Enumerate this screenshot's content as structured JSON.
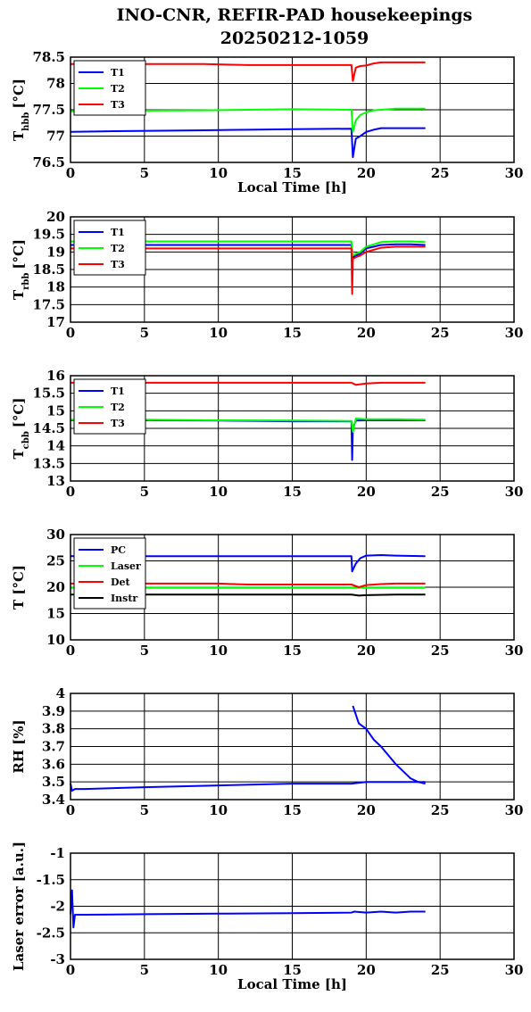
{
  "figure": {
    "title_line1": "INO-CNR, REFIR-PAD housekeepings",
    "title_line2": "20250212-1059"
  },
  "colors": {
    "T1": "#0000ff",
    "T2": "#00ff00",
    "T3": "#ff0000",
    "PC": "#0000ff",
    "Laser": "#00ff00",
    "Det": "#ff0000",
    "Instr": "#000000"
  },
  "chart_data": [
    {
      "type": "line",
      "ylabel_main": "T",
      "ylabel_sub": "hbb",
      "ylabel_unit": "[°C]",
      "xlabel": "Local Time [h]",
      "xlim": [
        0,
        30
      ],
      "ylim": [
        76.5,
        78.5
      ],
      "xticks": [
        "0",
        "5",
        "10",
        "15",
        "20",
        "25",
        "30"
      ],
      "yticks": [
        "76.5",
        "77",
        "77.5",
        "78",
        "78.5"
      ],
      "grid": true,
      "legend_position": "top-left",
      "series": [
        {
          "name": "T1",
          "x": [
            0,
            2,
            9,
            12,
            15,
            19,
            19.1,
            19.3,
            19.6,
            20,
            20.5,
            21,
            22,
            23,
            24
          ],
          "y": [
            77.08,
            77.09,
            77.11,
            77.12,
            77.13,
            77.14,
            76.6,
            76.95,
            77.0,
            77.08,
            77.12,
            77.15,
            77.15,
            77.15,
            77.15
          ]
        },
        {
          "name": "T2",
          "x": [
            0,
            2,
            9,
            12,
            15,
            19,
            19.1,
            19.3,
            19.6,
            20,
            20.5,
            21,
            22,
            23,
            24
          ],
          "y": [
            77.47,
            77.48,
            77.49,
            77.5,
            77.51,
            77.5,
            77.08,
            77.3,
            77.4,
            77.45,
            77.49,
            77.5,
            77.52,
            77.52,
            77.52
          ]
        },
        {
          "name": "T3",
          "x": [
            0,
            2,
            9,
            12,
            15,
            19,
            19.1,
            19.3,
            19.6,
            20,
            20.5,
            21,
            22,
            23,
            24
          ],
          "y": [
            78.37,
            78.37,
            78.37,
            78.35,
            78.35,
            78.35,
            78.05,
            78.3,
            78.33,
            78.34,
            78.38,
            78.4,
            78.4,
            78.4,
            78.4
          ]
        }
      ]
    },
    {
      "type": "line",
      "ylabel_main": "T",
      "ylabel_sub": "rbb",
      "ylabel_unit": "[°C]",
      "xlabel": "",
      "xlim": [
        0,
        30
      ],
      "ylim": [
        17,
        20
      ],
      "xticks": [
        "0",
        "5",
        "10",
        "15",
        "20",
        "25",
        "30"
      ],
      "yticks": [
        "17",
        "17.5",
        "18",
        "18.5",
        "19",
        "19.5",
        "20"
      ],
      "grid": true,
      "legend_position": "top-left",
      "series": [
        {
          "name": "T1",
          "x": [
            0,
            5,
            10,
            15,
            19,
            19.1,
            19.3,
            19.6,
            20,
            21,
            22,
            23,
            24
          ],
          "y": [
            19.2,
            19.2,
            19.2,
            19.2,
            19.2,
            18.85,
            18.9,
            18.95,
            19.1,
            19.2,
            19.22,
            19.22,
            19.2
          ]
        },
        {
          "name": "T2",
          "x": [
            0,
            5,
            10,
            15,
            19,
            19.1,
            19.3,
            19.6,
            20,
            21,
            22,
            23,
            24
          ],
          "y": [
            19.3,
            19.3,
            19.3,
            19.3,
            19.3,
            18.9,
            18.95,
            19.0,
            19.15,
            19.28,
            19.3,
            19.3,
            19.28
          ]
        },
        {
          "name": "T3",
          "x": [
            0,
            5,
            10,
            15,
            19,
            19.05,
            19.1,
            19.3,
            19.6,
            20,
            21,
            22,
            23,
            24
          ],
          "y": [
            19.1,
            19.1,
            19.1,
            19.1,
            19.1,
            17.8,
            18.8,
            18.85,
            18.9,
            19.0,
            19.12,
            19.15,
            19.15,
            19.15
          ]
        }
      ]
    },
    {
      "type": "line",
      "ylabel_main": "T",
      "ylabel_sub": "cbb",
      "ylabel_unit": "[°C]",
      "xlabel": "",
      "xlim": [
        0,
        30
      ],
      "ylim": [
        13,
        16
      ],
      "xticks": [
        "0",
        "5",
        "10",
        "15",
        "20",
        "25",
        "30"
      ],
      "yticks": [
        "13",
        "13.5",
        "14",
        "14.5",
        "15",
        "15.5",
        "16"
      ],
      "grid": true,
      "legend_position": "top-left",
      "series": [
        {
          "name": "T1",
          "x": [
            0,
            5,
            10,
            15,
            19,
            19.05,
            19.1,
            19.3,
            20,
            22,
            24
          ],
          "y": [
            14.73,
            14.73,
            14.72,
            14.7,
            14.7,
            13.6,
            14.5,
            14.72,
            14.73,
            14.73,
            14.73
          ]
        },
        {
          "name": "T2",
          "x": [
            0,
            5,
            10,
            15,
            19,
            19.1,
            19.3,
            20,
            22,
            24
          ],
          "y": [
            14.75,
            14.75,
            14.73,
            14.72,
            14.71,
            14.4,
            14.78,
            14.76,
            14.76,
            14.75
          ]
        },
        {
          "name": "T3",
          "x": [
            0,
            5,
            10,
            15,
            19,
            19.3,
            20,
            21,
            22,
            24
          ],
          "y": [
            15.8,
            15.8,
            15.8,
            15.8,
            15.8,
            15.74,
            15.78,
            15.8,
            15.8,
            15.8
          ]
        }
      ]
    },
    {
      "type": "line",
      "ylabel_main": "T [°C]",
      "ylabel_sub": "",
      "ylabel_unit": "",
      "xlabel": "",
      "xlim": [
        0,
        30
      ],
      "ylim": [
        10,
        30
      ],
      "xticks": [
        "0",
        "5",
        "10",
        "15",
        "20",
        "25",
        "30"
      ],
      "yticks": [
        "10",
        "15",
        "20",
        "25",
        "30"
      ],
      "grid": true,
      "legend_position": "top-left",
      "series": [
        {
          "name": "PC",
          "x": [
            0,
            5,
            10,
            15,
            19,
            19.05,
            19.3,
            19.6,
            20,
            21,
            22,
            24
          ],
          "y": [
            25.9,
            25.9,
            25.9,
            25.9,
            25.9,
            23.0,
            24.5,
            25.5,
            26.0,
            26.1,
            26.0,
            25.9
          ]
        },
        {
          "name": "Laser",
          "x": [
            0,
            5,
            10,
            15,
            19,
            20,
            22,
            24
          ],
          "y": [
            19.9,
            19.9,
            19.9,
            19.9,
            19.9,
            19.9,
            19.9,
            19.9
          ]
        },
        {
          "name": "Det",
          "x": [
            0,
            5,
            10,
            12,
            15,
            19,
            19.5,
            20,
            21,
            22,
            24
          ],
          "y": [
            20.7,
            20.7,
            20.7,
            20.5,
            20.5,
            20.5,
            20.0,
            20.4,
            20.6,
            20.7,
            20.7
          ]
        },
        {
          "name": "Instr",
          "x": [
            0,
            5,
            10,
            15,
            19,
            19.5,
            20,
            22,
            24
          ],
          "y": [
            18.6,
            18.6,
            18.6,
            18.6,
            18.6,
            18.4,
            18.5,
            18.6,
            18.6
          ]
        }
      ]
    },
    {
      "type": "line",
      "ylabel_main": "RH [%]",
      "ylabel_sub": "",
      "ylabel_unit": "",
      "xlabel": "",
      "xlim": [
        0,
        30
      ],
      "ylim": [
        3.4,
        4
      ],
      "xticks": [
        "0",
        "5",
        "10",
        "15",
        "20",
        "25",
        "30"
      ],
      "yticks": [
        "3.4",
        "3.5",
        "3.6",
        "3.7",
        "3.8",
        "3.9",
        "4"
      ],
      "grid": true,
      "legend_position": "none",
      "series": [
        {
          "name": "",
          "x": [
            0,
            0.1,
            0.3,
            1,
            5,
            10,
            15,
            19,
            20,
            22,
            24
          ],
          "y": [
            3.49,
            3.45,
            3.46,
            3.46,
            3.47,
            3.48,
            3.49,
            3.49,
            3.5,
            3.5,
            3.5
          ]
        },
        {
          "name": "",
          "x": [
            19.1,
            19.5,
            20,
            20.5,
            21,
            21.5,
            22,
            22.5,
            23,
            23.5,
            24
          ],
          "y": [
            3.93,
            3.83,
            3.8,
            3.74,
            3.7,
            3.65,
            3.6,
            3.56,
            3.52,
            3.5,
            3.49
          ]
        }
      ]
    },
    {
      "type": "line",
      "ylabel_main": "Laser error [a.u.]",
      "ylabel_sub": "",
      "ylabel_unit": "",
      "xlabel": "Local Time [h]",
      "xlim": [
        0,
        30
      ],
      "ylim": [
        -3,
        -1
      ],
      "xticks": [
        "0",
        "5",
        "10",
        "15",
        "20",
        "25",
        "30"
      ],
      "yticks": [
        "-3",
        "-2.5",
        "-2",
        "-1.5",
        "-1"
      ],
      "grid": true,
      "legend_position": "none",
      "series": [
        {
          "name": "",
          "x": [
            0,
            0.1,
            0.2,
            0.3,
            1,
            5,
            10,
            15,
            19,
            19.2,
            20,
            21,
            22,
            23,
            24
          ],
          "y": [
            -2.15,
            -1.7,
            -2.4,
            -2.16,
            -2.16,
            -2.15,
            -2.14,
            -2.13,
            -2.12,
            -2.1,
            -2.12,
            -2.1,
            -2.12,
            -2.1,
            -2.1
          ]
        }
      ]
    }
  ]
}
